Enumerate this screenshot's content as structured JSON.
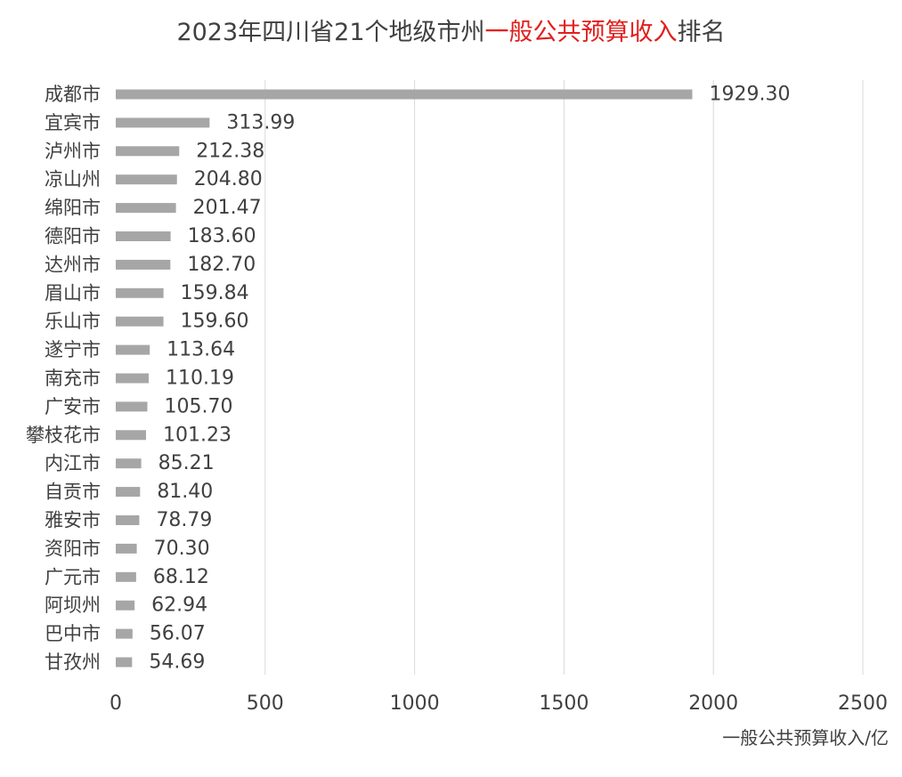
{
  "chart_data": {
    "type": "bar",
    "orientation": "horizontal",
    "title_parts": [
      "2023年四川省21个地级市州",
      "一般公共预算收入",
      "排名"
    ],
    "title_colors": [
      "#404040",
      "#e0201e",
      "#404040"
    ],
    "xlabel": "一般公共预算收入/亿",
    "ylabel": "",
    "xlim": [
      0,
      2500
    ],
    "xticks": [
      0,
      500,
      1000,
      1500,
      2000,
      2500
    ],
    "grid": "vertical",
    "legend": "none",
    "bar_color": "#a6a6a6",
    "categories": [
      "成都市",
      "宜宾市",
      "泸州市",
      "凉山州",
      "绵阳市",
      "德阳市",
      "达州市",
      "眉山市",
      "乐山市",
      "遂宁市",
      "南充市",
      "广安市",
      "攀枝花市",
      "内江市",
      "自贡市",
      "雅安市",
      "资阳市",
      "广元市",
      "阿坝州",
      "巴中市",
      "甘孜州"
    ],
    "values": [
      1929.3,
      313.99,
      212.38,
      204.8,
      201.47,
      183.6,
      182.7,
      159.84,
      159.6,
      113.64,
      110.19,
      105.7,
      101.23,
      85.21,
      81.4,
      78.79,
      70.3,
      68.12,
      62.94,
      56.07,
      54.69
    ],
    "value_labels": [
      "1929.30",
      "313.99",
      "212.38",
      "204.80",
      "201.47",
      "183.60",
      "182.70",
      "159.84",
      "159.60",
      "113.64",
      "110.19",
      "105.70",
      "101.23",
      "85.21",
      "81.40",
      "78.79",
      "70.30",
      "68.12",
      "62.94",
      "56.07",
      "54.69"
    ]
  }
}
